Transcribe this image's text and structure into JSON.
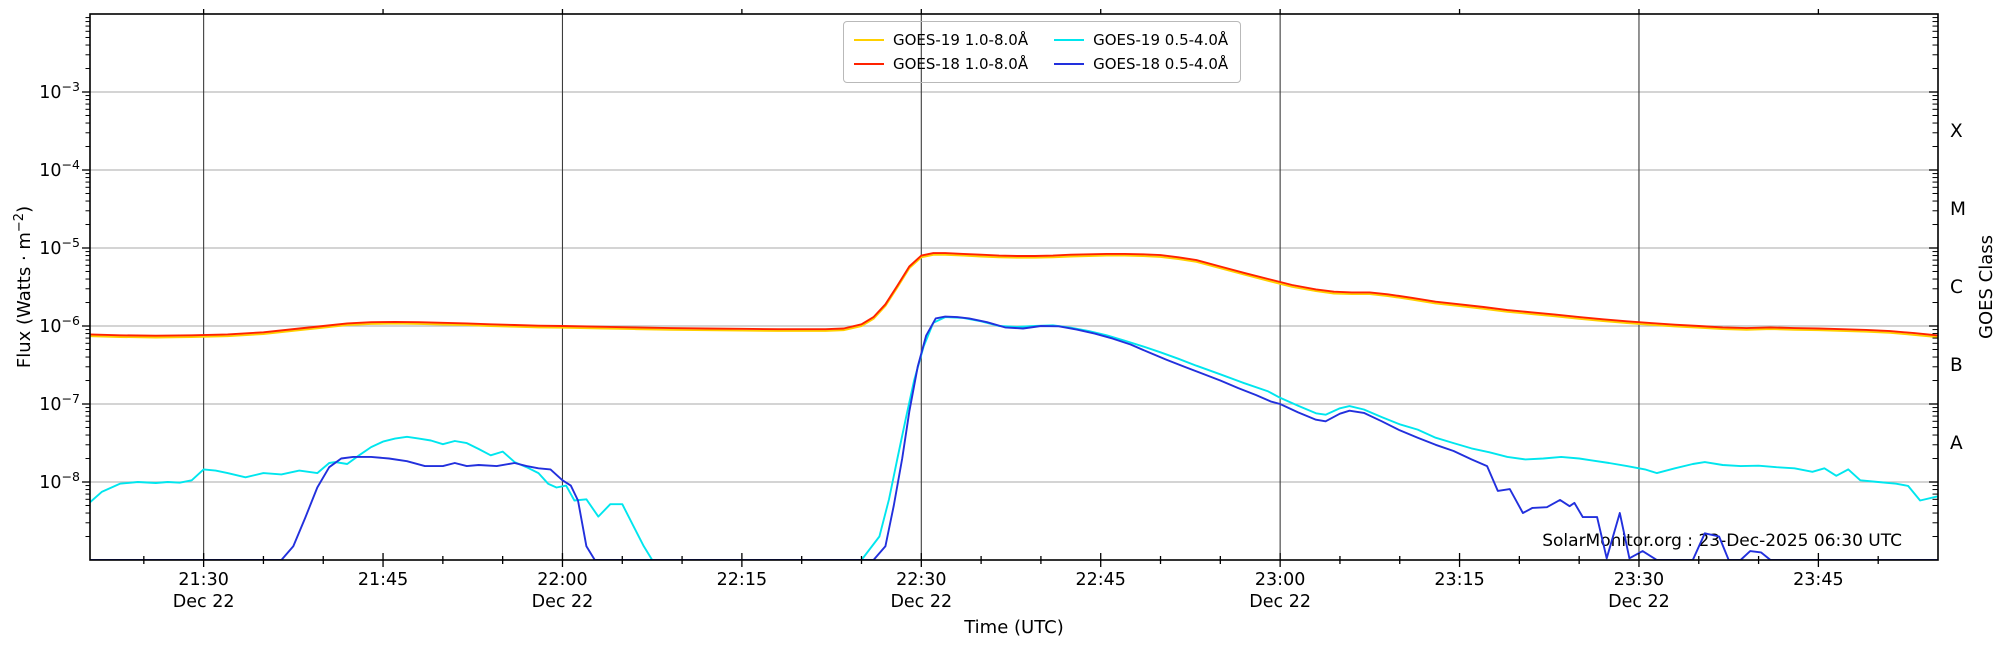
{
  "watermark": "SolarMonitor.org : 23-Dec-2025 06:30 UTC",
  "chart_data": {
    "type": "line",
    "title": "",
    "xlabel": "Time (UTC)",
    "ylabel_left": {
      "pre": "Flux (Watts · m",
      "sup": "−2",
      "post": ")"
    },
    "ylabel_right": "GOES Class",
    "x_unit": "minutes after 21:00 UTC, Dec 22",
    "x_axis": {
      "min": 20.5,
      "max": 175,
      "minor_step_minutes": 5,
      "major_ticks": [
        {
          "t": 30,
          "label": "21:30",
          "date": "Dec 22"
        },
        {
          "t": 45,
          "label": "21:45"
        },
        {
          "t": 60,
          "label": "22:00",
          "date": "Dec 22"
        },
        {
          "t": 75,
          "label": "22:15"
        },
        {
          "t": 90,
          "label": "22:30",
          "date": "Dec 22"
        },
        {
          "t": 105,
          "label": "22:45"
        },
        {
          "t": 120,
          "label": "23:00",
          "date": "Dec 22"
        },
        {
          "t": 135,
          "label": "23:15"
        },
        {
          "t": 150,
          "label": "23:30",
          "date": "Dec 22"
        },
        {
          "t": 165,
          "label": "23:45"
        }
      ],
      "gridline_ts": [
        30,
        60,
        90,
        120,
        150
      ]
    },
    "y_axis": {
      "scale": "log",
      "min_exp": -9,
      "max_exp": -2,
      "labeled_exps": [
        -3,
        -4,
        -5,
        -6,
        -7,
        -8
      ],
      "gridline_exps": [
        -3,
        -4,
        -5,
        -6,
        -7,
        -8
      ]
    },
    "right_axis": {
      "classes": [
        {
          "label": "X",
          "exp": -3.5
        },
        {
          "label": "M",
          "exp": -4.5
        },
        {
          "label": "C",
          "exp": -5.5
        },
        {
          "label": "B",
          "exp": -6.5
        },
        {
          "label": "A",
          "exp": -7.5
        }
      ]
    },
    "colors": {
      "goes19_long": "#ffd000",
      "goes18_long": "#ff2200",
      "goes19_short": "#00e6ee",
      "goes18_short": "#2230dd",
      "h_grid": "#bbbbbb",
      "v_grid": "#3d3d3d",
      "spine": "#000000"
    },
    "legend_position": "upper center, two columns",
    "series": [
      {
        "id": "goes19_long",
        "name": "GOES-19 1.0-8.0Å",
        "color": "#ffd000",
        "scale_of": "goes18_long",
        "v_scale": 0.95
      },
      {
        "id": "goes18_long",
        "name": "GOES-18 1.0-8.0Å",
        "color": "#ff2200",
        "t": [
          20.5,
          23,
          26,
          29,
          32,
          35,
          38,
          40,
          42,
          44,
          46,
          48,
          50,
          52,
          54,
          56,
          58,
          60,
          63,
          66,
          69,
          72,
          75,
          78,
          80,
          82,
          83.5,
          85,
          86,
          87,
          88,
          89,
          90,
          91,
          92,
          93.5,
          95,
          96.5,
          98,
          99.5,
          101,
          102.5,
          104,
          105.5,
          107,
          108.5,
          110,
          111.5,
          113,
          115,
          117,
          119,
          121,
          123,
          124.5,
          126,
          127.5,
          129,
          131,
          133,
          135,
          137,
          139,
          141,
          143,
          145,
          147,
          149,
          151,
          153,
          155,
          157,
          159,
          161,
          163,
          165,
          167,
          169,
          171,
          173,
          174.9
        ],
        "v": [
          7.8e-07,
          7.6e-07,
          7.5e-07,
          7.6e-07,
          7.8e-07,
          8.3e-07,
          9.3e-07,
          1e-06,
          1.08e-06,
          1.12e-06,
          1.13e-06,
          1.12e-06,
          1.1e-06,
          1.08e-06,
          1.05e-06,
          1.03e-06,
          1.01e-06,
          1e-06,
          9.8e-07,
          9.6e-07,
          9.4e-07,
          9.3e-07,
          9.2e-07,
          9.1e-07,
          9.1e-07,
          9.1e-07,
          9.3e-07,
          1.05e-06,
          1.3e-06,
          1.9e-06,
          3.3e-06,
          5.8e-06,
          8e-06,
          8.6e-06,
          8.6e-06,
          8.4e-06,
          8.2e-06,
          8e-06,
          7.9e-06,
          7.9e-06,
          8e-06,
          8.2e-06,
          8.3e-06,
          8.4e-06,
          8.4e-06,
          8.3e-06,
          8.1e-06,
          7.6e-06,
          7e-06,
          5.8e-06,
          4.8e-06,
          4e-06,
          3.35e-06,
          2.95e-06,
          2.75e-06,
          2.7e-06,
          2.7e-06,
          2.55e-06,
          2.3e-06,
          2.05e-06,
          1.9e-06,
          1.75e-06,
          1.6e-06,
          1.5e-06,
          1.4e-06,
          1.3e-06,
          1.22e-06,
          1.15e-06,
          1.09e-06,
          1.04e-06,
          1e-06,
          9.6e-07,
          9.4e-07,
          9.6e-07,
          9.4e-07,
          9.3e-07,
          9.1e-07,
          8.9e-07,
          8.6e-07,
          8.1e-07,
          7.6e-07
        ]
      },
      {
        "id": "goes19_short",
        "name": "GOES-19 0.5-4.0Å",
        "color": "#00e6ee",
        "t": [
          20.5,
          21.5,
          23,
          24.5,
          26,
          27,
          28,
          29,
          30,
          31,
          32,
          33.5,
          35,
          36.5,
          38,
          39.5,
          40.5,
          41,
          42,
          43,
          44,
          45,
          46,
          47,
          48,
          49,
          50,
          51,
          52,
          53,
          54,
          55,
          56,
          57,
          58,
          58.8,
          59.5,
          60.3,
          61,
          62,
          63,
          64,
          65,
          66,
          66.8,
          67.5,
          68.5,
          70,
          75,
          80,
          85,
          86.5,
          87.3,
          88,
          88.7,
          89.4,
          90.2,
          91,
          92,
          93.5,
          95,
          96.5,
          98,
          99.5,
          101,
          102.5,
          104,
          105.5,
          107,
          108.5,
          110,
          111.5,
          113,
          115,
          117,
          119,
          120,
          121.5,
          123,
          123.8,
          125,
          125.8,
          127,
          128.5,
          130,
          131.5,
          133,
          134.5,
          136,
          137.5,
          139,
          140.5,
          142,
          143.5,
          145,
          146,
          147.5,
          149,
          150.5,
          151.5,
          153,
          154.5,
          155.5,
          157,
          158.5,
          160,
          161.5,
          163,
          164.5,
          165.5,
          166.5,
          167.5,
          168.5,
          170,
          171.5,
          172.5,
          173.5,
          174.9
        ],
        "v": [
          5.5e-09,
          7.5e-09,
          9.5e-09,
          1e-08,
          9.7e-09,
          1e-08,
          9.8e-09,
          1.05e-08,
          1.45e-08,
          1.4e-08,
          1.3e-08,
          1.15e-08,
          1.3e-08,
          1.25e-08,
          1.4e-08,
          1.3e-08,
          1.75e-08,
          1.8e-08,
          1.7e-08,
          2.2e-08,
          2.8e-08,
          3.3e-08,
          3.6e-08,
          3.8e-08,
          3.6e-08,
          3.4e-08,
          3.05e-08,
          3.35e-08,
          3.15e-08,
          2.65e-08,
          2.2e-08,
          2.45e-08,
          1.8e-08,
          1.55e-08,
          1.3e-08,
          9.5e-09,
          8.5e-09,
          9e-09,
          5.8e-09,
          6e-09,
          3.6e-09,
          5.2e-09,
          5.2e-09,
          2.6e-09,
          1.5e-09,
          1e-09,
          1e-09,
          1e-09,
          1e-09,
          1e-09,
          1e-09,
          2e-09,
          6e-09,
          2e-08,
          6.5e-08,
          2e-07,
          5.5e-07,
          1.1e-06,
          1.3e-06,
          1.27e-06,
          1.15e-06,
          1e-06,
          9.7e-07,
          1e-06,
          1.02e-06,
          9.5e-07,
          8.6e-07,
          7.6e-07,
          6.5e-07,
          5.5e-07,
          4.6e-07,
          3.8e-07,
          3.1e-07,
          2.4e-07,
          1.85e-07,
          1.45e-07,
          1.2e-07,
          9.5e-08,
          7.6e-08,
          7.3e-08,
          8.8e-08,
          9.4e-08,
          8.5e-08,
          6.8e-08,
          5.5e-08,
          4.7e-08,
          3.7e-08,
          3.15e-08,
          2.7e-08,
          2.4e-08,
          2.1e-08,
          1.95e-08,
          2e-08,
          2.1e-08,
          2e-08,
          1.9e-08,
          1.75e-08,
          1.6e-08,
          1.45e-08,
          1.3e-08,
          1.5e-08,
          1.7e-08,
          1.8e-08,
          1.65e-08,
          1.6e-08,
          1.62e-08,
          1.55e-08,
          1.5e-08,
          1.35e-08,
          1.5e-08,
          1.2e-08,
          1.45e-08,
          1.05e-08,
          1e-08,
          9.5e-09,
          8.9e-09,
          5.8e-09,
          6.5e-09
        ]
      },
      {
        "id": "goes18_short",
        "name": "GOES-18 0.5-4.0Å",
        "color": "#2230dd",
        "t": [
          20.5,
          30,
          36.5,
          37.5,
          38.5,
          39.5,
          40.5,
          41.5,
          42.5,
          44,
          45.5,
          47,
          48.5,
          50,
          51,
          52,
          53,
          54.5,
          56,
          57,
          58,
          59,
          60,
          60.7,
          61.3,
          62,
          62.7,
          64,
          70,
          80,
          86,
          87,
          87.7,
          88.4,
          89,
          89.7,
          90.4,
          91.2,
          92,
          93,
          94,
          95.5,
          97,
          98.5,
          100,
          101.5,
          103,
          104.5,
          106,
          107.5,
          109,
          110.5,
          112,
          113.5,
          115,
          116.5,
          118,
          119.2,
          120,
          121.5,
          123,
          123.8,
          125,
          125.8,
          127,
          128.5,
          130,
          131.5,
          133,
          134.5,
          136,
          137.3,
          138.2,
          139.2,
          140.3,
          141.1,
          142.3,
          143.4,
          144.2,
          144.6,
          145.3,
          146.5,
          147.3,
          148.4,
          149.2,
          150.3,
          151.5,
          153,
          154.5,
          155.5,
          156.7,
          157.5,
          158.5,
          159.3,
          160.2,
          161,
          162,
          165,
          170,
          174.9
        ],
        "v": [
          1e-09,
          1e-09,
          1e-09,
          1.5e-09,
          3.5e-09,
          8.5e-09,
          1.55e-08,
          2e-08,
          2.1e-08,
          2.1e-08,
          2e-08,
          1.85e-08,
          1.6e-08,
          1.6e-08,
          1.75e-08,
          1.6e-08,
          1.65e-08,
          1.6e-08,
          1.75e-08,
          1.6e-08,
          1.5e-08,
          1.45e-08,
          1.05e-08,
          9e-09,
          5.8e-09,
          1.5e-09,
          1e-09,
          1e-09,
          1e-09,
          1e-09,
          1e-09,
          1.5e-09,
          5e-09,
          2e-08,
          8e-08,
          3e-07,
          7.5e-07,
          1.25e-06,
          1.32e-06,
          1.3e-06,
          1.25e-06,
          1.12e-06,
          9.6e-07,
          9.3e-07,
          1e-06,
          9.9e-07,
          9e-07,
          8e-07,
          6.9e-07,
          5.8e-07,
          4.6e-07,
          3.7e-07,
          3e-07,
          2.45e-07,
          2e-07,
          1.6e-07,
          1.3e-07,
          1.08e-07,
          1e-07,
          7.8e-08,
          6.3e-08,
          6e-08,
          7.5e-08,
          8.2e-08,
          7.7e-08,
          6e-08,
          4.6e-08,
          3.7e-08,
          3e-08,
          2.5e-08,
          1.95e-08,
          1.6e-08,
          7.7e-09,
          8.1e-09,
          4e-09,
          4.65e-09,
          4.75e-09,
          5.9e-09,
          4.9e-09,
          5.4e-09,
          3.55e-09,
          3.55e-09,
          1.05e-09,
          4e-09,
          1.05e-09,
          1.3e-09,
          1e-09,
          1e-09,
          1e-09,
          2.2e-09,
          2e-09,
          1e-09,
          1e-09,
          1.3e-09,
          1.25e-09,
          1e-09,
          1e-09,
          1e-09,
          1e-09,
          1e-09
        ]
      }
    ]
  }
}
